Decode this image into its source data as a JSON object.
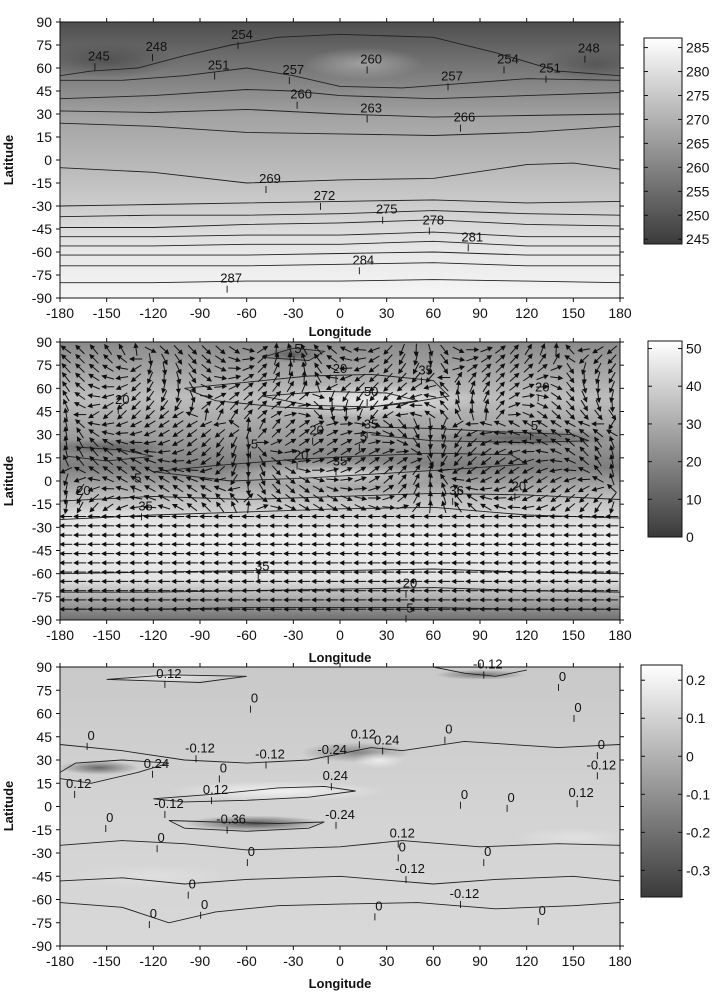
{
  "chart_data": [
    {
      "type": "heatmap",
      "xlabel": "Longitude",
      "ylabel": "Latitude",
      "xlim": [
        -180,
        180
      ],
      "ylim": [
        -90,
        90
      ],
      "xticks": [
        "-180",
        "-150",
        "-120",
        "-90",
        "-60",
        "-30",
        "0",
        "30",
        "60",
        "90",
        "120",
        "150",
        "180"
      ],
      "yticks": [
        "90",
        "75",
        "60",
        "45",
        "30",
        "15",
        "0",
        "-15",
        "-30",
        "-45",
        "-60",
        "-75",
        "-90"
      ],
      "colorbar": {
        "range": [
          244,
          287
        ],
        "ticks": [
          "285",
          "280",
          "275",
          "270",
          "265",
          "260",
          "255",
          "250",
          "245"
        ]
      },
      "contour_labels": [
        {
          "text": "245",
          "lon": -155,
          "lat": 65
        },
        {
          "text": "248",
          "lon": -118,
          "lat": 71
        },
        {
          "text": "254",
          "lon": -63,
          "lat": 79
        },
        {
          "text": "251",
          "lon": -78,
          "lat": 59
        },
        {
          "text": "257",
          "lon": -30,
          "lat": 56
        },
        {
          "text": "260",
          "lon": 20,
          "lat": 63
        },
        {
          "text": "257",
          "lon": 72,
          "lat": 52
        },
        {
          "text": "254",
          "lon": 108,
          "lat": 63
        },
        {
          "text": "251",
          "lon": 135,
          "lat": 57
        },
        {
          "text": "248",
          "lon": 160,
          "lat": 70
        },
        {
          "text": "260",
          "lon": -25,
          "lat": 40
        },
        {
          "text": "263",
          "lon": 20,
          "lat": 31
        },
        {
          "text": "266",
          "lon": 80,
          "lat": 25
        },
        {
          "text": "269",
          "lon": -45,
          "lat": -15
        },
        {
          "text": "272",
          "lon": -10,
          "lat": -26
        },
        {
          "text": "275",
          "lon": 30,
          "lat": -35
        },
        {
          "text": "278",
          "lon": 60,
          "lat": -42
        },
        {
          "text": "281",
          "lon": 85,
          "lat": -53
        },
        {
          "text": "284",
          "lon": 15,
          "lat": -68
        },
        {
          "text": "287",
          "lon": -70,
          "lat": -80
        }
      ]
    },
    {
      "type": "heatmap",
      "xlabel": "Longitude",
      "ylabel": "Latitude",
      "xlim": [
        -180,
        180
      ],
      "ylim": [
        -90,
        90
      ],
      "xticks": [
        "-180",
        "-150",
        "-120",
        "-90",
        "-60",
        "-30",
        "0",
        "30",
        "60",
        "90",
        "120",
        "150",
        "180"
      ],
      "yticks": [
        "90",
        "75",
        "60",
        "45",
        "30",
        "15",
        "0",
        "-15",
        "-30",
        "-45",
        "-60",
        "-75",
        "-90"
      ],
      "colorbar": {
        "range": [
          0,
          52
        ],
        "ticks": [
          "50",
          "40",
          "30",
          "20",
          "10",
          "0"
        ]
      },
      "contour_labels": [
        {
          "text": "5",
          "lon": -27,
          "lat": 83
        },
        {
          "text": "20",
          "lon": 0,
          "lat": 70
        },
        {
          "text": "35",
          "lon": 55,
          "lat": 69
        },
        {
          "text": "50",
          "lon": 20,
          "lat": 55
        },
        {
          "text": "20",
          "lon": -140,
          "lat": 50
        },
        {
          "text": "20",
          "lon": 130,
          "lat": 58
        },
        {
          "text": "35",
          "lon": 20,
          "lat": 34
        },
        {
          "text": "5",
          "lon": 15,
          "lat": 26
        },
        {
          "text": "20",
          "lon": -15,
          "lat": 30
        },
        {
          "text": "5",
          "lon": -55,
          "lat": 21
        },
        {
          "text": "5",
          "lon": 125,
          "lat": 33
        },
        {
          "text": "20",
          "lon": -25,
          "lat": 14
        },
        {
          "text": "35",
          "lon": 0,
          "lat": 10
        },
        {
          "text": "5",
          "lon": -130,
          "lat": -1
        },
        {
          "text": "20",
          "lon": -165,
          "lat": -9
        },
        {
          "text": "36",
          "lon": 75,
          "lat": -9
        },
        {
          "text": "20",
          "lon": 115,
          "lat": -6
        },
        {
          "text": "35",
          "lon": -125,
          "lat": -19
        },
        {
          "text": "35",
          "lon": -50,
          "lat": -58
        },
        {
          "text": "20",
          "lon": 45,
          "lat": -69
        },
        {
          "text": "5",
          "lon": 45,
          "lat": -85
        }
      ]
    },
    {
      "type": "heatmap",
      "xlabel": "Longitude",
      "ylabel": "Latitude",
      "xlim": [
        -180,
        180
      ],
      "ylim": [
        -90,
        90
      ],
      "xticks": [
        "-180",
        "-150",
        "-120",
        "-90",
        "-60",
        "-30",
        "0",
        "30",
        "60",
        "90",
        "120",
        "150",
        "180"
      ],
      "yticks": [
        "90",
        "75",
        "60",
        "45",
        "30",
        "15",
        "0",
        "-15",
        "-30",
        "-45",
        "-60",
        "-75",
        "-90"
      ],
      "colorbar": {
        "range": [
          -0.37,
          0.24
        ],
        "ticks": [
          "0.2",
          "0.1",
          "0",
          "-0.1",
          "-0.2",
          "-0.3"
        ]
      },
      "contour_labels": [
        {
          "text": "0.12",
          "lon": -110,
          "lat": 83
        },
        {
          "text": "-0.12",
          "lon": 95,
          "lat": 89
        },
        {
          "text": "0",
          "lon": 143,
          "lat": 81
        },
        {
          "text": "0",
          "lon": -55,
          "lat": 67
        },
        {
          "text": "0",
          "lon": 153,
          "lat": 61
        },
        {
          "text": "0",
          "lon": -160,
          "lat": 43
        },
        {
          "text": "0.12",
          "lon": 15,
          "lat": 44
        },
        {
          "text": "0",
          "lon": 70,
          "lat": 47
        },
        {
          "text": "-0.12",
          "lon": -90,
          "lat": 35
        },
        {
          "text": "-0.12",
          "lon": -45,
          "lat": 31
        },
        {
          "text": "-0.24",
          "lon": -5,
          "lat": 34
        },
        {
          "text": "0.24",
          "lon": 30,
          "lat": 40
        },
        {
          "text": "0",
          "lon": 168,
          "lat": 37
        },
        {
          "text": "0.24",
          "lon": -118,
          "lat": 25
        },
        {
          "text": "-0.12",
          "lon": 168,
          "lat": 24
        },
        {
          "text": "0",
          "lon": -75,
          "lat": 22
        },
        {
          "text": "0.12",
          "lon": -168,
          "lat": 12
        },
        {
          "text": "0.24",
          "lon": -3,
          "lat": 17
        },
        {
          "text": "0.12",
          "lon": -80,
          "lat": 8
        },
        {
          "text": "0",
          "lon": 80,
          "lat": 5
        },
        {
          "text": "0",
          "lon": 110,
          "lat": 3
        },
        {
          "text": "0.12",
          "lon": 155,
          "lat": 6
        },
        {
          "text": "-0.12",
          "lon": -110,
          "lat": -1
        },
        {
          "text": "0",
          "lon": -148,
          "lat": -10
        },
        {
          "text": "-0.36",
          "lon": -70,
          "lat": -11
        },
        {
          "text": "-0.24",
          "lon": 0,
          "lat": -8
        },
        {
          "text": "0",
          "lon": -115,
          "lat": -23
        },
        {
          "text": "0.12",
          "lon": 40,
          "lat": -20
        },
        {
          "text": "0",
          "lon": 40,
          "lat": -29
        },
        {
          "text": "0",
          "lon": 95,
          "lat": -32
        },
        {
          "text": "0",
          "lon": -57,
          "lat": -32
        },
        {
          "text": "-0.12",
          "lon": 45,
          "lat": -43
        },
        {
          "text": "0",
          "lon": -95,
          "lat": -53
        },
        {
          "text": "-0.12",
          "lon": 80,
          "lat": -59
        },
        {
          "text": "0",
          "lon": -87,
          "lat": -66
        },
        {
          "text": "0",
          "lon": 25,
          "lat": -67
        },
        {
          "text": "0",
          "lon": 130,
          "lat": -70
        },
        {
          "text": "0",
          "lon": -120,
          "lat": -72
        }
      ]
    }
  ]
}
